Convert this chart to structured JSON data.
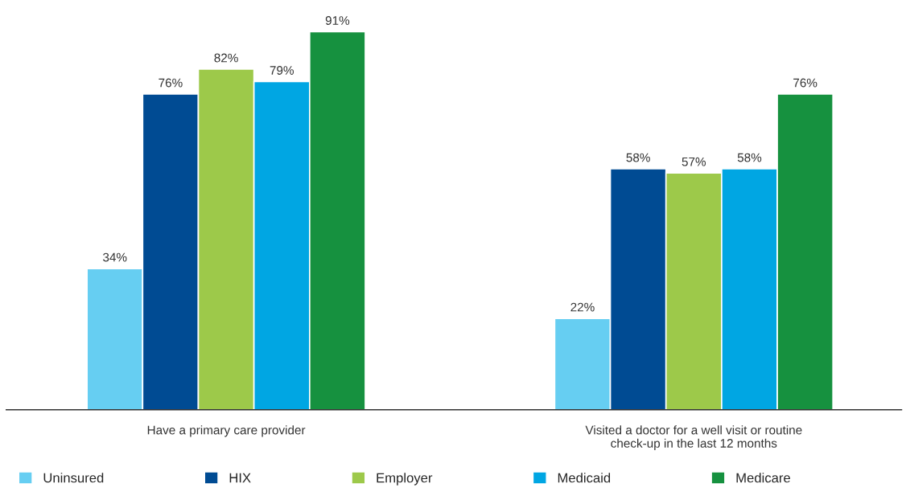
{
  "chart_data": {
    "type": "bar",
    "categories": [
      "Have a primary care provider",
      "Visited a doctor for a well visit or routine\ncheck-up in the last 12 months"
    ],
    "series": [
      {
        "name": "Uninsured",
        "color": "#66cef2",
        "values": [
          34,
          22
        ],
        "value_labels": [
          "34%",
          "22%"
        ]
      },
      {
        "name": "HIX",
        "color": "#004b93",
        "values": [
          76,
          58
        ],
        "value_labels": [
          "76%",
          "58%"
        ]
      },
      {
        "name": "Employer",
        "color": "#9dc94a",
        "values": [
          82,
          57
        ],
        "value_labels": [
          "82%",
          "57%"
        ]
      },
      {
        "name": "Medicaid",
        "color": "#00a6e3",
        "values": [
          79,
          58
        ],
        "value_labels": [
          "79%",
          "58%"
        ]
      },
      {
        "name": "Medicare",
        "color": "#16913f",
        "values": [
          91,
          76
        ],
        "value_labels": [
          "91%",
          "76%"
        ]
      }
    ],
    "legend": "bottom",
    "grid": false
  }
}
